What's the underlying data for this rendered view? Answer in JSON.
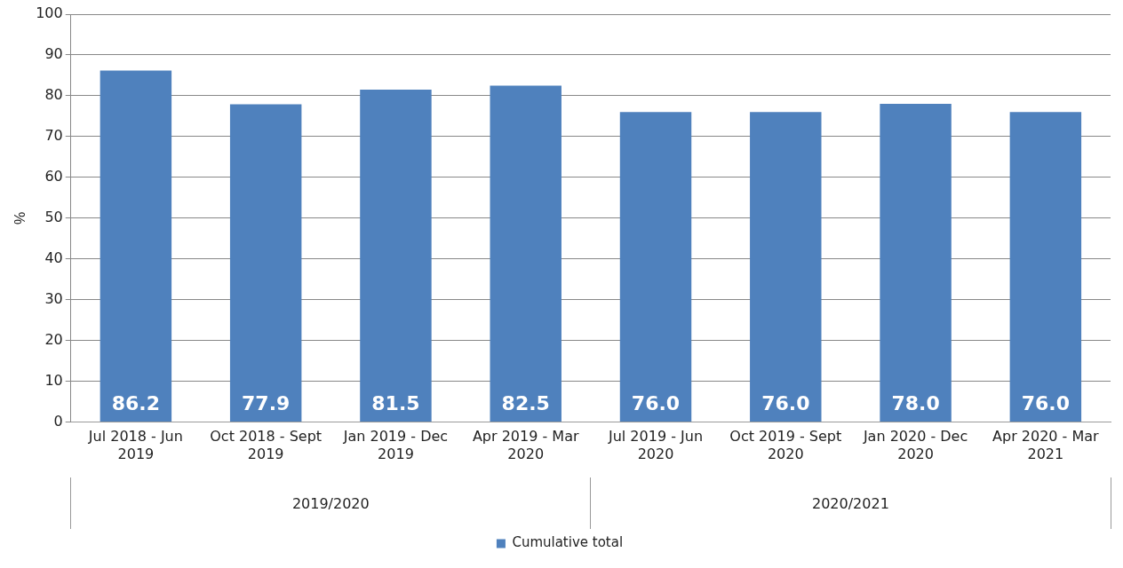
{
  "chart_data": {
    "type": "bar",
    "ylabel": "%",
    "categories": [
      "Jul 2018 - Jun 2019",
      "Oct 2018 - Sept 2019",
      "Jan 2019 - Dec 2019",
      "Apr 2019 - Mar 2020",
      "Jul 2019 - Jun 2020",
      "Oct 2019 - Sept 2020",
      "Jan 2020 - Dec 2020",
      "Apr 2020 - Mar 2021"
    ],
    "series": [
      {
        "name": "Cumulative total",
        "color": "#4f81bd",
        "values": [
          86.2,
          77.9,
          81.5,
          82.5,
          76.0,
          76.0,
          78.0,
          76.0
        ]
      }
    ],
    "value_labels": [
      "86.2",
      "77.9",
      "81.5",
      "82.5",
      "76.0",
      "76.0",
      "78.0",
      "76.0"
    ],
    "ylim": [
      0,
      100
    ],
    "yticks": [
      0,
      10,
      20,
      30,
      40,
      50,
      60,
      70,
      80,
      90,
      100
    ],
    "grid": "y",
    "legend": "bottom",
    "annotations": [
      "2019/2020",
      "2020/2021"
    ]
  }
}
